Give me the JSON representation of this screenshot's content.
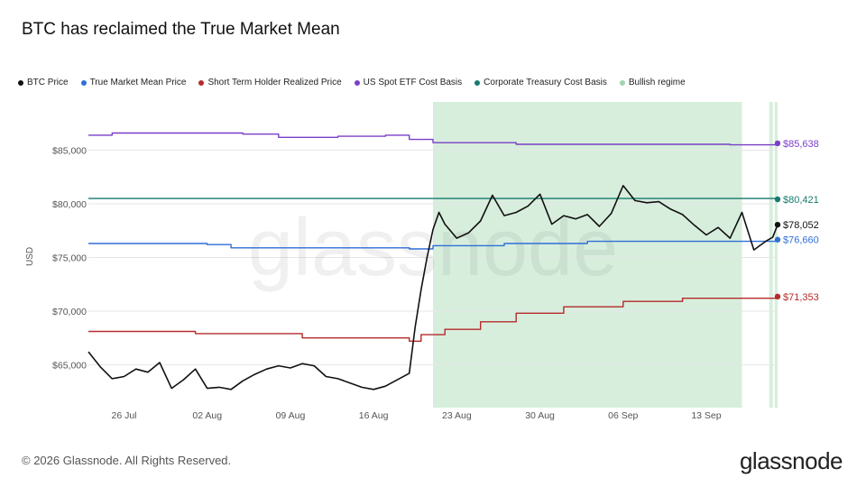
{
  "title": "BTC has reclaimed the True Market Mean",
  "footer": "© 2026 Glassnode. All Rights Reserved.",
  "brand": "glassnode",
  "watermark": "glassnode",
  "legend": [
    {
      "label": "BTC Price",
      "color": "#111111"
    },
    {
      "label": "True Market Mean Price",
      "color": "#2f6fd6"
    },
    {
      "label": "Short Term Holder Realized Price",
      "color": "#b52a2a"
    },
    {
      "label": "US Spot ETF Cost Basis",
      "color": "#7a3fc8"
    },
    {
      "label": "Corporate Treasury Cost Basis",
      "color": "#167a6e"
    },
    {
      "label": "Bullish regime",
      "color": "#9fd6b0"
    }
  ],
  "chart_data": {
    "type": "line",
    "ylabel": "USD",
    "ylim": [
      61000,
      89500
    ],
    "xlim": [
      "2024-07-23",
      "2024-09-19"
    ],
    "yticks": [
      {
        "value": 65000,
        "label": "$65,000"
      },
      {
        "value": 70000,
        "label": "$70,000"
      },
      {
        "value": 75000,
        "label": "$75,000"
      },
      {
        "value": 80000,
        "label": "$80,000"
      },
      {
        "value": 85000,
        "label": "$85,000"
      }
    ],
    "xticks": [
      {
        "date": "2024-07-26",
        "label": "26 Jul"
      },
      {
        "date": "2024-08-02",
        "label": "02 Aug"
      },
      {
        "date": "2024-08-09",
        "label": "09 Aug"
      },
      {
        "date": "2024-08-16",
        "label": "16 Aug"
      },
      {
        "date": "2024-08-23",
        "label": "23 Aug"
      },
      {
        "date": "2024-08-30",
        "label": "30 Aug"
      },
      {
        "date": "2024-09-06",
        "label": "06 Sep"
      },
      {
        "date": "2024-09-13",
        "label": "13 Sep"
      }
    ],
    "grid": true,
    "regimes": [
      {
        "name": "Bullish regime",
        "start": "2024-08-21",
        "end": "2024-09-16"
      },
      {
        "name": "Bullish regime",
        "start": "2024-09-18.3",
        "end": "2024-09-18.6"
      },
      {
        "name": "Bullish regime",
        "start": "2024-09-18.75",
        "end": "2024-09-19"
      }
    ],
    "series": [
      {
        "name": "BTC Price",
        "color": "#111111",
        "last_label": "$78,052",
        "last": 78052,
        "points": [
          [
            "2024-07-23",
            66200
          ],
          [
            "2024-07-24",
            64800
          ],
          [
            "2024-07-25",
            63700
          ],
          [
            "2024-07-26",
            63900
          ],
          [
            "2024-07-27",
            64600
          ],
          [
            "2024-07-28",
            64300
          ],
          [
            "2024-07-29",
            65200
          ],
          [
            "2024-07-30",
            62800
          ],
          [
            "2024-07-31",
            63600
          ],
          [
            "2024-08-01",
            64600
          ],
          [
            "2024-08-02",
            62800
          ],
          [
            "2024-08-03",
            62900
          ],
          [
            "2024-08-04",
            62700
          ],
          [
            "2024-08-05",
            63500
          ],
          [
            "2024-08-06",
            64100
          ],
          [
            "2024-08-07",
            64600
          ],
          [
            "2024-08-08",
            64900
          ],
          [
            "2024-08-09",
            64700
          ],
          [
            "2024-08-10",
            65100
          ],
          [
            "2024-08-11",
            64900
          ],
          [
            "2024-08-12",
            63900
          ],
          [
            "2024-08-13",
            63700
          ],
          [
            "2024-08-14",
            63300
          ],
          [
            "2024-08-15",
            62900
          ],
          [
            "2024-08-16",
            62700
          ],
          [
            "2024-08-17",
            63000
          ],
          [
            "2024-08-18",
            63600
          ],
          [
            "2024-08-19",
            64200
          ],
          [
            "2024-08-19.5",
            68500
          ],
          [
            "2024-08-20",
            72000
          ],
          [
            "2024-08-20.5",
            75000
          ],
          [
            "2024-08-21",
            77600
          ],
          [
            "2024-08-21.5",
            79200
          ],
          [
            "2024-08-22",
            78100
          ],
          [
            "2024-08-23",
            76800
          ],
          [
            "2024-08-24",
            77300
          ],
          [
            "2024-08-25",
            78400
          ],
          [
            "2024-08-26",
            80800
          ],
          [
            "2024-08-27",
            78900
          ],
          [
            "2024-08-28",
            79200
          ],
          [
            "2024-08-29",
            79800
          ],
          [
            "2024-08-30",
            80900
          ],
          [
            "2024-08-31",
            78100
          ],
          [
            "2024-09-01",
            78900
          ],
          [
            "2024-09-02",
            78600
          ],
          [
            "2024-09-03",
            79000
          ],
          [
            "2024-09-04",
            77900
          ],
          [
            "2024-09-05",
            79100
          ],
          [
            "2024-09-06",
            81700
          ],
          [
            "2024-09-07",
            80300
          ],
          [
            "2024-09-08",
            80100
          ],
          [
            "2024-09-09",
            80200
          ],
          [
            "2024-09-10",
            79500
          ],
          [
            "2024-09-11",
            79000
          ],
          [
            "2024-09-12",
            78000
          ],
          [
            "2024-09-13",
            77100
          ],
          [
            "2024-09-14",
            77800
          ],
          [
            "2024-09-15",
            76800
          ],
          [
            "2024-09-16",
            79200
          ],
          [
            "2024-09-17",
            75700
          ],
          [
            "2024-09-18",
            76500
          ],
          [
            "2024-09-18.6",
            76900
          ],
          [
            "2024-09-19",
            78052
          ]
        ]
      },
      {
        "name": "True Market Mean Price",
        "color": "#2f6fd6",
        "last_label": "$76,660",
        "last": 76660,
        "points": [
          [
            "2024-07-23",
            76300
          ],
          [
            "2024-08-02",
            76200
          ],
          [
            "2024-08-04",
            75900
          ],
          [
            "2024-08-19",
            75800
          ],
          [
            "2024-08-21",
            76100
          ],
          [
            "2024-08-27",
            76300
          ],
          [
            "2024-09-03",
            76500
          ],
          [
            "2024-09-19",
            76660
          ]
        ]
      },
      {
        "name": "Short Term Holder Realized Price",
        "color": "#b52a2a",
        "last_label": "$71,353",
        "last": 71353,
        "points": [
          [
            "2024-07-23",
            68100
          ],
          [
            "2024-08-01",
            67900
          ],
          [
            "2024-08-10",
            67500
          ],
          [
            "2024-08-19",
            67200
          ],
          [
            "2024-08-20",
            67800
          ],
          [
            "2024-08-22",
            68300
          ],
          [
            "2024-08-25",
            69000
          ],
          [
            "2024-08-28",
            69800
          ],
          [
            "2024-09-01",
            70400
          ],
          [
            "2024-09-06",
            70900
          ],
          [
            "2024-09-11",
            71200
          ],
          [
            "2024-09-19",
            71353
          ]
        ]
      },
      {
        "name": "US Spot ETF Cost Basis",
        "color": "#7a3fc8",
        "last_label": "$85,638",
        "last": 85638,
        "points": [
          [
            "2024-07-23",
            86400
          ],
          [
            "2024-07-25",
            86600
          ],
          [
            "2024-08-05",
            86500
          ],
          [
            "2024-08-08",
            86200
          ],
          [
            "2024-08-13",
            86300
          ],
          [
            "2024-08-17",
            86400
          ],
          [
            "2024-08-19",
            86000
          ],
          [
            "2024-08-21",
            85700
          ],
          [
            "2024-08-28",
            85550
          ],
          [
            "2024-09-15",
            85500
          ],
          [
            "2024-09-19",
            85638
          ]
        ]
      },
      {
        "name": "Corporate Treasury Cost Basis",
        "color": "#167a6e",
        "last_label": "$80,421",
        "last": 80421,
        "points": [
          [
            "2024-07-23",
            80500
          ],
          [
            "2024-09-19",
            80421
          ]
        ]
      }
    ]
  }
}
